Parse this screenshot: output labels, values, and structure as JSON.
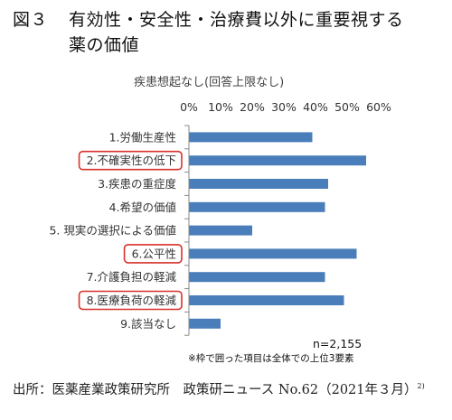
{
  "figure": {
    "label": "図３",
    "title_line1": "有効性・安全性・治療費以外に重要視する",
    "title_line2": "薬の価値"
  },
  "note_n": "n=2,155",
  "note_box": "※枠で囲った項目は全体での上位3要素",
  "source": {
    "text": "出所：医薬産業政策研究所　政策研ニュース No.62（2021年３月）",
    "sup": "2)"
  },
  "colors": {
    "bar": "#4a7ebb",
    "highlight": "#d9312b"
  },
  "chart_data": {
    "type": "bar",
    "orientation": "horizontal",
    "title": "疾患想起なし(回答上限なし)",
    "categories": [
      "1.労働生産性",
      "2.不確実性の低下",
      "3.疾患の重症度",
      "4.希望の価値",
      "5. 現実の選択による価値",
      "6.公平性",
      "7.介護負担の軽減",
      "8.医療負荷の軽減",
      "9.該当なし"
    ],
    "values": [
      39,
      56,
      44,
      43,
      20,
      53,
      43,
      49,
      10
    ],
    "highlighted": [
      "2.不確実性の低下",
      "6.公平性",
      "8.医療負荷の軽減"
    ],
    "xlim": [
      0,
      60
    ],
    "xticks": [
      0,
      10,
      20,
      30,
      40,
      50,
      60
    ],
    "xtick_labels": [
      "0%",
      "10%",
      "20%",
      "30%",
      "40%",
      "50%",
      "60%"
    ],
    "grid": false,
    "legend": "none"
  }
}
